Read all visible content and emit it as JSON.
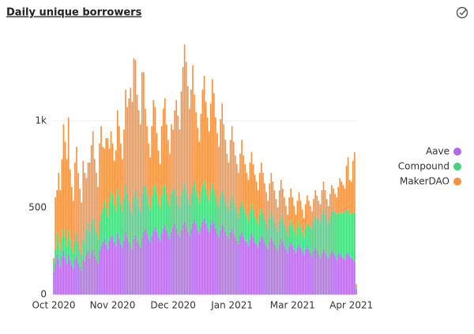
{
  "chart_data": {
    "type": "stacked-bar",
    "title": "Daily unique borrowers",
    "categories": [
      "Oct 2020",
      null,
      null,
      null,
      null,
      null,
      null,
      null,
      null,
      null,
      null,
      null,
      null,
      null,
      null,
      null,
      null,
      null,
      null,
      null,
      null,
      null,
      null,
      null,
      null,
      null,
      null,
      null,
      null,
      null,
      null,
      null,
      null,
      null,
      null,
      null,
      "Nov 2020",
      null,
      null,
      null,
      null,
      null,
      null,
      null,
      null,
      null,
      null,
      null,
      null,
      null,
      null,
      null,
      null,
      null,
      null,
      null,
      null,
      null,
      null,
      null,
      null,
      null,
      null,
      null,
      null,
      null,
      null,
      null,
      null,
      null,
      null,
      null,
      null,
      "Dec 2020",
      null,
      null,
      null,
      null,
      null,
      null,
      null,
      null,
      null,
      null,
      null,
      null,
      null,
      null,
      null,
      null,
      null,
      null,
      null,
      null,
      null,
      null,
      null,
      null,
      null,
      null,
      null,
      null,
      null,
      null,
      null,
      null,
      null,
      null,
      null,
      "Jan 2021",
      null,
      null,
      null,
      null,
      null,
      null,
      null,
      null,
      null,
      null,
      null,
      null,
      null,
      null,
      null,
      null,
      null,
      null,
      null,
      null,
      null,
      null,
      null,
      null,
      null,
      null,
      null,
      null,
      null,
      null,
      null,
      null,
      null,
      null,
      null,
      null,
      "Mar 2021",
      null,
      null,
      null,
      null,
      null,
      null,
      null,
      null,
      null,
      null,
      null,
      null,
      null,
      null,
      null,
      null,
      null,
      null,
      null,
      null,
      null,
      null,
      null,
      null,
      null,
      null,
      null,
      null,
      null,
      null,
      null,
      null,
      null,
      null,
      null,
      "Apr 2021",
      null,
      null,
      null
    ],
    "series": [
      {
        "name": "Aave",
        "color": "#b366f2",
        "values": [
          130,
          180,
          230,
          200,
          160,
          220,
          250,
          210,
          180,
          230,
          200,
          170,
          150,
          200,
          220,
          180,
          160,
          140,
          200,
          190,
          230,
          250,
          210,
          240,
          260,
          220,
          200,
          180,
          250,
          280,
          300,
          320,
          290,
          260,
          310,
          340,
          330,
          300,
          280,
          350,
          320,
          290,
          270,
          310,
          360,
          330,
          300,
          280,
          260,
          320,
          340,
          310,
          290,
          270,
          330,
          360,
          380,
          350,
          320,
          300,
          340,
          370,
          390,
          360,
          330,
          310,
          350,
          380,
          400,
          370,
          340,
          320,
          360,
          390,
          410,
          380,
          350,
          330,
          370,
          400,
          420,
          390,
          360,
          340,
          380,
          410,
          430,
          400,
          370,
          350,
          390,
          420,
          440,
          410,
          380,
          360,
          400,
          430,
          410,
          380,
          350,
          330,
          370,
          400,
          390,
          360,
          340,
          320,
          360,
          380,
          350,
          330,
          310,
          290,
          340,
          360,
          330,
          310,
          300,
          280,
          320,
          350,
          330,
          300,
          290,
          270,
          310,
          340,
          320,
          300,
          280,
          260,
          300,
          330,
          310,
          290,
          270,
          250,
          290,
          320,
          300,
          280,
          260,
          240,
          280,
          300,
          280,
          260,
          240,
          270,
          290,
          270,
          250,
          230,
          260,
          280,
          260,
          240,
          220,
          250,
          270,
          250,
          230,
          210,
          240,
          260,
          240,
          220,
          210,
          230,
          250,
          240,
          220,
          200,
          230,
          240,
          220,
          210,
          200,
          230,
          240,
          220,
          210,
          200,
          190,
          30
        ]
      },
      {
        "name": "Compound",
        "color": "#3fd57a",
        "values": [
          60,
          80,
          120,
          100,
          90,
          110,
          130,
          120,
          100,
          140,
          120,
          100,
          90,
          110,
          130,
          120,
          100,
          90,
          120,
          110,
          140,
          160,
          150,
          170,
          180,
          160,
          150,
          140,
          170,
          190,
          200,
          220,
          210,
          190,
          230,
          250,
          240,
          220,
          200,
          260,
          250,
          230,
          210,
          240,
          270,
          250,
          230,
          210,
          200,
          240,
          260,
          240,
          220,
          210,
          250,
          270,
          240,
          220,
          200,
          190,
          230,
          250,
          240,
          220,
          200,
          190,
          220,
          240,
          230,
          210,
          200,
          190,
          220,
          210,
          200,
          190,
          180,
          170,
          200,
          210,
          220,
          200,
          190,
          180,
          200,
          210,
          220,
          200,
          190,
          180,
          200,
          210,
          220,
          200,
          190,
          180,
          200,
          210,
          200,
          190,
          180,
          170,
          190,
          200,
          190,
          180,
          170,
          160,
          180,
          190,
          180,
          170,
          160,
          150,
          170,
          180,
          170,
          160,
          150,
          140,
          160,
          170,
          160,
          150,
          140,
          130,
          150,
          160,
          150,
          140,
          130,
          120,
          140,
          150,
          140,
          130,
          120,
          110,
          130,
          140,
          130,
          120,
          110,
          100,
          120,
          130,
          120,
          110,
          100,
          120,
          130,
          120,
          110,
          100,
          120,
          130,
          140,
          150,
          160,
          170,
          180,
          190,
          200,
          210,
          220,
          230,
          220,
          210,
          200,
          220,
          230,
          240,
          250,
          260,
          240,
          230,
          250,
          260,
          270,
          260,
          250,
          240,
          260,
          270,
          280,
          10
        ]
      },
      {
        "name": "MakerDAO",
        "color": "#f7913f",
        "values": [
          20,
          300,
          250,
          400,
          350,
          450,
          600,
          550,
          500,
          650,
          400,
          350,
          300,
          450,
          500,
          400,
          350,
          300,
          450,
          400,
          300,
          350,
          400,
          450,
          500,
          400,
          350,
          300,
          450,
          500,
          350,
          300,
          400,
          450,
          300,
          350,
          300,
          250,
          350,
          450,
          400,
          350,
          300,
          400,
          550,
          500,
          600,
          700,
          650,
          800,
          750,
          600,
          550,
          500,
          700,
          650,
          450,
          400,
          350,
          300,
          400,
          500,
          450,
          350,
          300,
          250,
          400,
          450,
          500,
          400,
          350,
          300,
          400,
          350,
          450,
          550,
          500,
          450,
          600,
          700,
          800,
          750,
          650,
          550,
          600,
          700,
          500,
          450,
          400,
          350,
          450,
          550,
          600,
          500,
          450,
          400,
          500,
          600,
          550,
          450,
          400,
          350,
          450,
          500,
          400,
          350,
          300,
          280,
          350,
          400,
          350,
          300,
          280,
          260,
          300,
          350,
          300,
          280,
          250,
          240,
          280,
          300,
          260,
          240,
          220,
          200,
          240,
          260,
          230,
          200,
          180,
          160,
          200,
          220,
          200,
          180,
          160,
          140,
          180,
          200,
          180,
          160,
          140,
          120,
          160,
          180,
          160,
          140,
          120,
          150,
          170,
          150,
          130,
          110,
          140,
          160,
          140,
          120,
          100,
          130,
          150,
          130,
          110,
          100,
          140,
          160,
          140,
          120,
          100,
          130,
          150,
          130,
          110,
          100,
          150,
          200,
          180,
          160,
          140,
          250,
          300,
          200,
          180,
          300,
          350,
          20
        ]
      }
    ],
    "ylim": [
      0,
      1514
    ],
    "yticks": [
      0,
      500,
      {
        "value": 1000,
        "label": "1k"
      }
    ],
    "grid": true,
    "legend": "right"
  }
}
